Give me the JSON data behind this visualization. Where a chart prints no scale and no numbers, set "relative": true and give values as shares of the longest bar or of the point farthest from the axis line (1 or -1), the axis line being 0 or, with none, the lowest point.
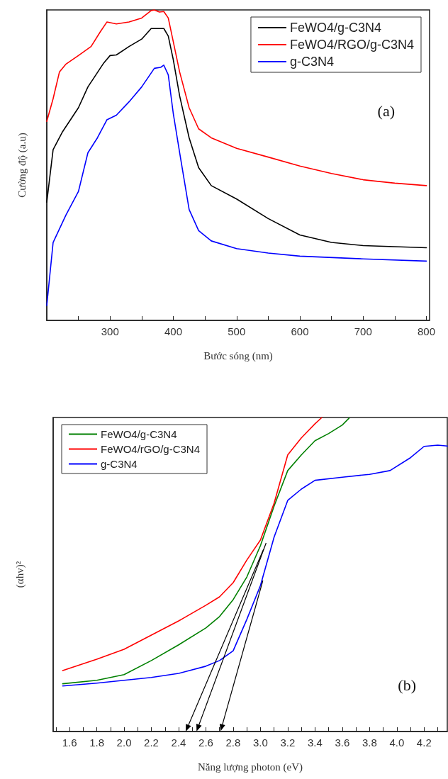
{
  "chart_data": [
    {
      "type": "line",
      "xlabel": "Bước sóng (nm)",
      "ylabel": "Cường độ (a.u)",
      "relative": true,
      "xlim": [
        200,
        805
      ],
      "xticks": [
        {
          "value": 250,
          "label": null
        },
        300,
        {
          "value": 350,
          "label": null
        },
        400,
        {
          "value": 450,
          "label": null
        },
        500,
        {
          "value": 550,
          "label": null
        },
        600,
        {
          "value": 650,
          "label": null
        },
        700,
        {
          "value": 750,
          "label": null
        },
        800
      ],
      "legend": "top right",
      "grid": false,
      "marker": "none",
      "line_style": "solid",
      "annotations": [
        "(a)"
      ],
      "series": [
        {
          "name": "FeWO4/g-C3N4",
          "color": "#000000",
          "x": [
            200,
            210,
            225,
            250,
            265,
            290,
            300,
            310,
            330,
            350,
            365,
            375,
            385,
            392,
            400,
            410,
            425,
            440,
            460,
            500,
            550,
            600,
            650,
            700,
            800
          ],
          "values": [
            0.381,
            0.55,
            0.608,
            0.685,
            0.752,
            0.829,
            0.853,
            0.855,
            0.882,
            0.906,
            0.94,
            0.94,
            0.94,
            0.916,
            0.839,
            0.723,
            0.588,
            0.492,
            0.434,
            0.391,
            0.328,
            0.275,
            0.251,
            0.241,
            0.234
          ]
        },
        {
          "name": "FeWO4/RGO/g-C3N4",
          "color": "#ff0000",
          "x": [
            200,
            210,
            220,
            230,
            250,
            270,
            285,
            295,
            310,
            330,
            350,
            365,
            370,
            378,
            385,
            392,
            400,
            410,
            425,
            440,
            460,
            500,
            550,
            600,
            650,
            700,
            750,
            800
          ],
          "values": [
            0.641,
            0.714,
            0.8,
            0.825,
            0.853,
            0.882,
            0.931,
            0.961,
            0.955,
            0.961,
            0.974,
            0.998,
            1,
            0.993,
            0.995,
            0.974,
            0.897,
            0.8,
            0.685,
            0.617,
            0.588,
            0.554,
            0.526,
            0.497,
            0.473,
            0.453,
            0.442,
            0.434
          ]
        },
        {
          "name": "g-C3N4",
          "color": "#0000ff",
          "x": [
            200,
            210,
            230,
            250,
            265,
            280,
            295,
            310,
            330,
            350,
            370,
            380,
            385,
            392,
            400,
            410,
            425,
            440,
            460,
            500,
            550,
            600,
            700,
            800
          ],
          "values": [
            0.048,
            0.251,
            0.338,
            0.415,
            0.54,
            0.588,
            0.646,
            0.661,
            0.704,
            0.752,
            0.812,
            0.815,
            0.822,
            0.791,
            0.665,
            0.54,
            0.357,
            0.289,
            0.256,
            0.231,
            0.217,
            0.207,
            0.198,
            0.191
          ]
        }
      ]
    },
    {
      "type": "line",
      "xlabel": "Năng lượng photon (eV)",
      "ylabel": "(αhv)²",
      "relative": true,
      "xlim": [
        1.48,
        4.37
      ],
      "xticks": [
        {
          "value": 1.5,
          "label": null
        },
        1.6,
        {
          "value": 1.7,
          "label": null
        },
        1.8,
        {
          "value": 1.9,
          "label": null
        },
        {
          "value": 2,
          "label": "2.0"
        },
        {
          "value": 2.1,
          "label": null
        },
        2.2,
        {
          "value": 2.3,
          "label": null
        },
        2.4,
        {
          "value": 2.5,
          "label": null
        },
        2.6,
        {
          "value": 2.7,
          "label": null
        },
        2.8,
        {
          "value": 2.9,
          "label": null
        },
        {
          "value": 3,
          "label": "3.0"
        },
        {
          "value": 3.1,
          "label": null
        },
        3.2,
        {
          "value": 3.3,
          "label": null
        },
        3.4,
        {
          "value": 3.5,
          "label": null
        },
        3.6,
        {
          "value": 3.7,
          "label": null
        },
        3.8,
        {
          "value": 3.9,
          "label": null
        },
        {
          "value": 4,
          "label": "4.0"
        },
        {
          "value": 4.1,
          "label": null
        },
        4.2,
        {
          "value": 4.3,
          "label": null
        }
      ],
      "legend": "top left",
      "grid": false,
      "marker": "none",
      "line_style": "solid",
      "annotations": [
        "(b)"
      ],
      "series": [
        {
          "name": "FeWO4/g-C3N4",
          "color": "#008000",
          "x": [
            1.55,
            1.8,
            2.0,
            2.2,
            2.4,
            2.6,
            2.7,
            2.8,
            2.9,
            3.0,
            3.1,
            3.2,
            3.3,
            3.4,
            3.5,
            3.6,
            3.65
          ],
          "values": [
            0.152,
            0.163,
            0.181,
            0.226,
            0.276,
            0.33,
            0.366,
            0.42,
            0.492,
            0.592,
            0.718,
            0.831,
            0.881,
            0.926,
            0.949,
            0.976,
            0.998
          ]
        },
        {
          "name": "FeWO4/rGO/g-C3N4",
          "color": "#ff0000",
          "x": [
            1.55,
            1.8,
            2.0,
            2.2,
            2.4,
            2.6,
            2.7,
            2.8,
            2.9,
            3.0,
            3.1,
            3.2,
            3.3,
            3.4,
            3.45
          ],
          "values": [
            0.194,
            0.23,
            0.262,
            0.307,
            0.352,
            0.402,
            0.429,
            0.474,
            0.546,
            0.61,
            0.727,
            0.881,
            0.935,
            0.98,
            1
          ]
        },
        {
          "name": "g-C3N4",
          "color": "#0000ff",
          "x": [
            1.55,
            1.8,
            2.0,
            2.2,
            2.4,
            2.6,
            2.7,
            2.8,
            2.9,
            3.0,
            3.1,
            3.2,
            3.3,
            3.4,
            3.6,
            3.8,
            3.95,
            4.1,
            4.2,
            4.3,
            4.37
          ],
          "values": [
            0.145,
            0.154,
            0.163,
            0.172,
            0.185,
            0.208,
            0.226,
            0.257,
            0.357,
            0.465,
            0.619,
            0.736,
            0.772,
            0.8,
            0.81,
            0.819,
            0.831,
            0.872,
            0.908,
            0.912,
            0.909
          ]
        }
      ]
    }
  ]
}
